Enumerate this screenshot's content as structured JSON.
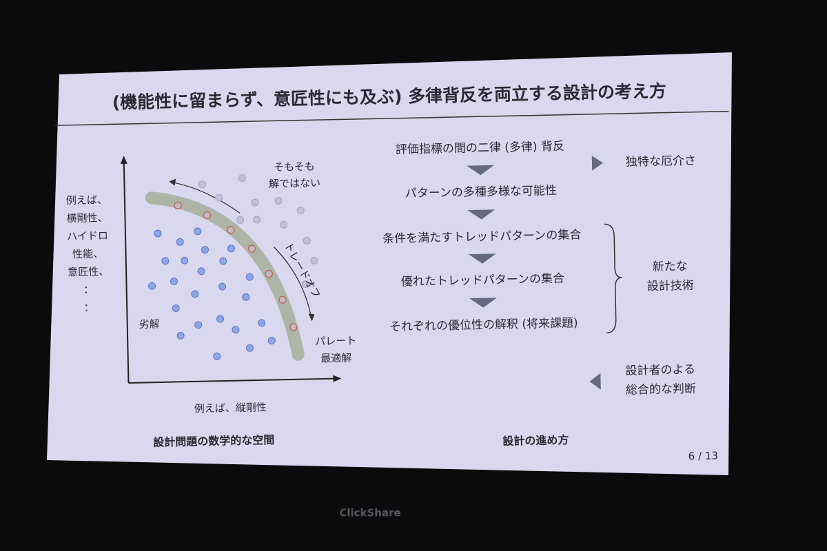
{
  "slide": {
    "title": "(機能性に留まらず、意匠性にも及ぶ) 多律背反を両立する設計の考え方",
    "page": "6 / 13"
  },
  "left_panel": {
    "y_axis_labels": [
      "例えば、",
      "横剛性、",
      "ハイドロ",
      "性能、",
      "意匠性、",
      "：",
      "："
    ],
    "x_axis_label": "例えば、縦剛性",
    "infeasible": [
      "そもそも",
      "解ではない"
    ],
    "inferior": "劣解",
    "tradeoff": "トレードオフ",
    "pareto": [
      "パレート",
      "最適解"
    ],
    "caption": "設計問題の数学的な空間"
  },
  "right_panel": {
    "steps": [
      "評価指標の間の二律 (多律) 背反",
      "パターンの多種多様な可能性",
      "条件を満たすトレッドパターンの集合",
      "優れたトレッドパターンの集合",
      "それぞれの優位性の解釈 (将来課題)"
    ],
    "unique": "独特な厄介さ",
    "new_tech": [
      "新たな",
      "設計技術"
    ],
    "judgment": [
      "設計者のよる",
      "総合的な判断"
    ],
    "caption": "設計の進め方"
  },
  "footer": {
    "brand": "ClickShare"
  }
}
